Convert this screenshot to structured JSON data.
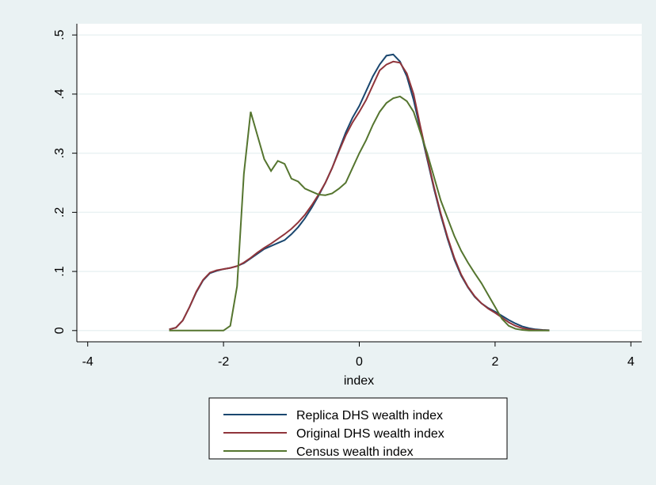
{
  "chart_data": {
    "type": "line",
    "x_label": "index",
    "x": [
      -2.8,
      -2.7,
      -2.6,
      -2.5,
      -2.4,
      -2.3,
      -2.2,
      -2.1,
      -2.0,
      -1.9,
      -1.8,
      -1.7,
      -1.6,
      -1.5,
      -1.4,
      -1.3,
      -1.2,
      -1.1,
      -1.0,
      -0.9,
      -0.8,
      -0.7,
      -0.6,
      -0.5,
      -0.4,
      -0.3,
      -0.2,
      -0.1,
      0,
      0.1,
      0.2,
      0.3,
      0.4,
      0.5,
      0.6,
      0.7,
      0.8,
      0.9,
      1.0,
      1.1,
      1.2,
      1.3,
      1.4,
      1.5,
      1.6,
      1.7,
      1.8,
      1.9,
      2.0,
      2.1,
      2.2,
      2.3,
      2.4,
      2.5,
      2.6,
      2.7,
      2.8
    ],
    "series": [
      {
        "name": "Replica DHS wealth index",
        "color": "#1a476f",
        "values": [
          0.002,
          0.005,
          0.017,
          0.04,
          0.065,
          0.085,
          0.097,
          0.101,
          0.104,
          0.106,
          0.109,
          0.114,
          0.122,
          0.13,
          0.138,
          0.143,
          0.148,
          0.153,
          0.163,
          0.175,
          0.19,
          0.208,
          0.228,
          0.25,
          0.275,
          0.305,
          0.335,
          0.36,
          0.38,
          0.405,
          0.43,
          0.45,
          0.465,
          0.467,
          0.455,
          0.43,
          0.39,
          0.34,
          0.29,
          0.24,
          0.195,
          0.155,
          0.12,
          0.093,
          0.073,
          0.057,
          0.046,
          0.038,
          0.032,
          0.025,
          0.018,
          0.012,
          0.007,
          0.004,
          0.002,
          0.001,
          0.0005
        ]
      },
      {
        "name": "Original DHS wealth index",
        "color": "#90353b",
        "values": [
          0.002,
          0.005,
          0.017,
          0.04,
          0.066,
          0.086,
          0.098,
          0.102,
          0.104,
          0.106,
          0.109,
          0.115,
          0.123,
          0.132,
          0.14,
          0.147,
          0.155,
          0.163,
          0.172,
          0.183,
          0.196,
          0.212,
          0.23,
          0.25,
          0.275,
          0.303,
          0.33,
          0.352,
          0.37,
          0.39,
          0.415,
          0.44,
          0.45,
          0.455,
          0.453,
          0.435,
          0.4,
          0.345,
          0.293,
          0.243,
          0.198,
          0.158,
          0.123,
          0.095,
          0.074,
          0.058,
          0.046,
          0.037,
          0.03,
          0.022,
          0.014,
          0.008,
          0.004,
          0.002,
          0.001,
          0.0005,
          0.0002
        ]
      },
      {
        "name": "Census wealth index",
        "color": "#55752f",
        "values": [
          0,
          0,
          0,
          0,
          0,
          0,
          0,
          0,
          0,
          0.008,
          0.075,
          0.265,
          0.37,
          0.33,
          0.29,
          0.27,
          0.287,
          0.282,
          0.257,
          0.252,
          0.24,
          0.235,
          0.23,
          0.229,
          0.232,
          0.24,
          0.25,
          0.275,
          0.3,
          0.322,
          0.348,
          0.37,
          0.385,
          0.393,
          0.396,
          0.388,
          0.37,
          0.335,
          0.3,
          0.26,
          0.22,
          0.19,
          0.16,
          0.135,
          0.115,
          0.097,
          0.08,
          0.06,
          0.04,
          0.02,
          0.008,
          0.003,
          0.001,
          0,
          0,
          0,
          0
        ]
      }
    ],
    "xlim": [
      -4.16,
      4.16
    ],
    "ylim": [
      -0.019,
      0.519
    ],
    "xticks": [
      -4,
      -2,
      0,
      2,
      4
    ],
    "yticks": [
      0,
      {
        "value": 0.1,
        "label": ".1"
      },
      {
        "value": 0.2,
        "label": ".2"
      },
      {
        "value": 0.3,
        "label": ".3"
      },
      {
        "value": 0.4,
        "label": ".4"
      },
      {
        "value": 0.5,
        "label": ".5"
      }
    ],
    "grid": true,
    "legend": "bottom"
  }
}
